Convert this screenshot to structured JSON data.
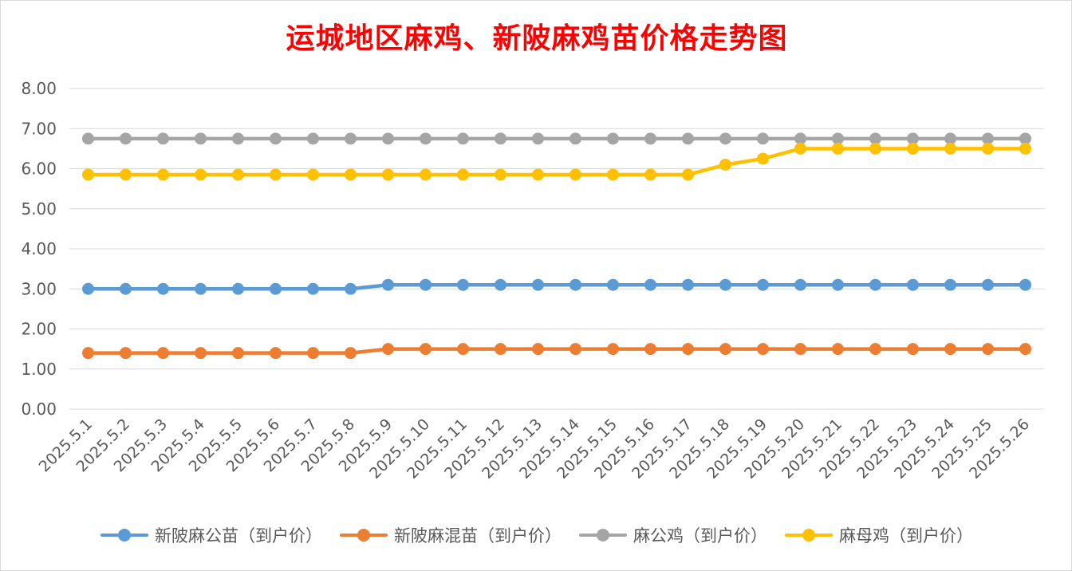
{
  "chart_data": {
    "type": "line",
    "title": "运城地区麻鸡、新陂麻鸡苗价格走势图",
    "xlabel": "",
    "ylabel": "",
    "ylim": [
      0,
      8
    ],
    "y_ticks": [
      "0.00",
      "1.00",
      "2.00",
      "3.00",
      "4.00",
      "5.00",
      "6.00",
      "7.00",
      "8.00"
    ],
    "grid": true,
    "legend_position": "bottom",
    "categories": [
      "2025.5.1",
      "2025.5.2",
      "2025.5.3",
      "2025.5.4",
      "2025.5.5",
      "2025.5.6",
      "2025.5.7",
      "2025.5.8",
      "2025.5.9",
      "2025.5.10",
      "2025.5.11",
      "2025.5.12",
      "2025.5.13",
      "2025.5.14",
      "2025.5.15",
      "2025.5.16",
      "2025.5.17",
      "2025.5.18",
      "2025.5.19",
      "2025.5.20",
      "2025.5.21",
      "2025.5.22",
      "2025.5.23",
      "2025.5.24",
      "2025.5.25",
      "2025.5.26"
    ],
    "series": [
      {
        "name": "新陂麻公苗（到户价）",
        "color": "#5b9bd5",
        "values": [
          3.0,
          3.0,
          3.0,
          3.0,
          3.0,
          3.0,
          3.0,
          3.0,
          3.1,
          3.1,
          3.1,
          3.1,
          3.1,
          3.1,
          3.1,
          3.1,
          3.1,
          3.1,
          3.1,
          3.1,
          3.1,
          3.1,
          3.1,
          3.1,
          3.1,
          3.1
        ]
      },
      {
        "name": "新陂麻混苗（到户价）",
        "color": "#ed7d31",
        "values": [
          1.4,
          1.4,
          1.4,
          1.4,
          1.4,
          1.4,
          1.4,
          1.4,
          1.5,
          1.5,
          1.5,
          1.5,
          1.5,
          1.5,
          1.5,
          1.5,
          1.5,
          1.5,
          1.5,
          1.5,
          1.5,
          1.5,
          1.5,
          1.5,
          1.5,
          1.5
        ]
      },
      {
        "name": "麻公鸡（到户价）",
        "color": "#a5a5a5",
        "values": [
          6.75,
          6.75,
          6.75,
          6.75,
          6.75,
          6.75,
          6.75,
          6.75,
          6.75,
          6.75,
          6.75,
          6.75,
          6.75,
          6.75,
          6.75,
          6.75,
          6.75,
          6.75,
          6.75,
          6.75,
          6.75,
          6.75,
          6.75,
          6.75,
          6.75,
          6.75
        ]
      },
      {
        "name": "麻母鸡（到户价）",
        "color": "#ffc000",
        "values": [
          5.85,
          5.85,
          5.85,
          5.85,
          5.85,
          5.85,
          5.85,
          5.85,
          5.85,
          5.85,
          5.85,
          5.85,
          5.85,
          5.85,
          5.85,
          5.85,
          5.85,
          6.1,
          6.25,
          6.5,
          6.5,
          6.5,
          6.5,
          6.5,
          6.5,
          6.5
        ]
      }
    ]
  }
}
